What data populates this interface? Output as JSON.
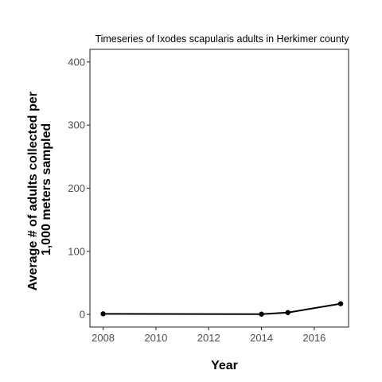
{
  "chart_data": {
    "type": "line",
    "title": "Timeseries of Ixodes scapularis adults in Herkimer county",
    "xlabel": "Year",
    "ylabel_lines": [
      "Average # of adults collected per",
      "1,000 meters sampled"
    ],
    "xlim": [
      2007.5,
      2017.3
    ],
    "ylim": [
      -20,
      420
    ],
    "x_ticks": [
      2008,
      2010,
      2012,
      2014,
      2016
    ],
    "y_ticks": [
      0,
      100,
      200,
      300,
      400
    ],
    "grid": false,
    "series": [
      {
        "x": [
          2008,
          2014,
          2015,
          2017
        ],
        "y": [
          1,
          0.5,
          3,
          17
        ]
      }
    ],
    "colors": {
      "line": "#000000",
      "panel_border": "#333333",
      "tick_label": "#4d4d4d"
    }
  }
}
